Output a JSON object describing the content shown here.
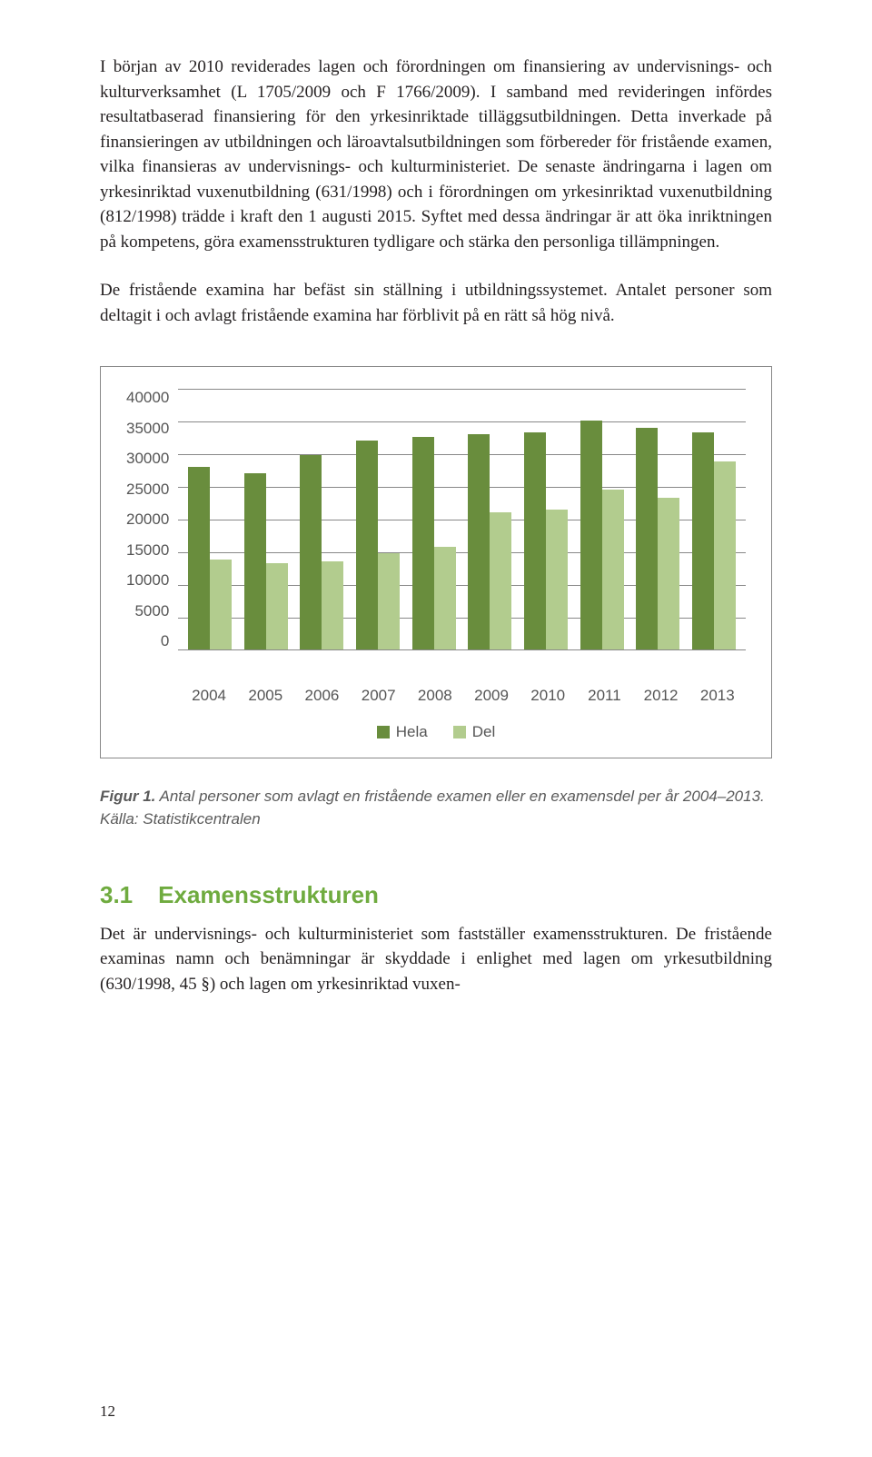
{
  "paragraphs": {
    "p1": "I början av 2010 reviderades lagen och förordningen om finansiering av undervisnings- och kulturverksamhet (L 1705/2009 och F 1766/2009). I samband med revideringen infördes resultatbaserad finansiering för den yrkesinriktade tilläggsutbildningen. Detta inverkade på finansieringen av utbildningen och läroavtalsutbildningen som förbereder för fristående examen, vilka finansieras av undervisnings- och kulturministeriet. De senaste ändringarna i lagen om yrkesinriktad vuxenutbildning (631/1998) och i förordningen om yrkesinriktad vuxenutbildning (812/1998) trädde i kraft den 1 augusti 2015. Syftet med dessa ändringar är att öka inriktningen på kompetens, göra examensstrukturen tydligare och stärka den personliga tillämpningen.",
    "p2": "De fristående examina har befäst sin ställning i utbildningssystemet. Antalet personer som deltagit i och avlagt fristående examina har förblivit på en rätt så hög nivå."
  },
  "chart": {
    "y_ticks": [
      "40000",
      "35000",
      "30000",
      "25000",
      "20000",
      "15000",
      "10000",
      "5000",
      "0"
    ],
    "y_max": 40000,
    "categories": [
      "2004",
      "2005",
      "2006",
      "2007",
      "2008",
      "2009",
      "2010",
      "2011",
      "2012",
      "2013"
    ],
    "series": [
      {
        "name": "Hela",
        "color": "#698d3d",
        "values": [
          28000,
          27000,
          29800,
          32000,
          32500,
          33000,
          33200,
          35000,
          34000,
          33200
        ]
      },
      {
        "name": "Del",
        "color": "#b2cc8e",
        "values": [
          13800,
          13300,
          13500,
          14800,
          15800,
          21000,
          21500,
          24500,
          23200,
          28800
        ]
      }
    ],
    "grid_color": "#888888",
    "background": "#ffffff",
    "legend_labels": {
      "hela": "Hela",
      "del": "Del"
    }
  },
  "caption": {
    "lead": "Figur 1.",
    "text": " Antal personer som avlagt en fristående examen eller en examensdel per år 2004–2013. Källa: Statistikcentralen"
  },
  "section": {
    "num": "3.1",
    "title": "Examensstrukturen",
    "body": "Det är undervisnings- och kulturministeriet som fastställer examensstrukturen. De fristående examinas namn och benämningar är skyddade i enlighet med lagen om yrkesutbildning (630/1998, 45 §) och lagen om yrkesinriktad vuxen-"
  },
  "page_number": "12"
}
